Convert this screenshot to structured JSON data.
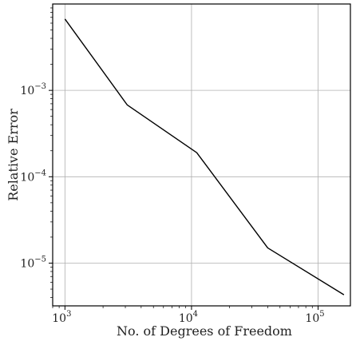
{
  "chart_data": {
    "type": "line",
    "xlabel": "No. of Degrees of Freedom",
    "ylabel": "Relative Error",
    "xscale": "log",
    "yscale": "log",
    "xlim": [
      800,
      180000
    ],
    "ylim": [
      3.2e-06,
      0.01
    ],
    "grid": true,
    "legend": "none",
    "line_color": "#000000",
    "grid_color": "#b0b0b0",
    "x_ticks": [
      {
        "value": 1000,
        "base": "10",
        "exp": "3"
      },
      {
        "value": 10000,
        "base": "10",
        "exp": "4"
      },
      {
        "value": 100000,
        "base": "10",
        "exp": "5"
      }
    ],
    "y_ticks": [
      {
        "value": 1e-05,
        "base": "10",
        "exp": "−5"
      },
      {
        "value": 0.0001,
        "base": "10",
        "exp": "−4"
      },
      {
        "value": 0.001,
        "base": "10",
        "exp": "−3"
      }
    ],
    "series": [
      {
        "x": [
          1000,
          3100,
          11000,
          40000,
          160000
        ],
        "y": [
          0.0067,
          0.00068,
          0.00019,
          1.5e-05,
          4.3e-06
        ]
      }
    ]
  }
}
